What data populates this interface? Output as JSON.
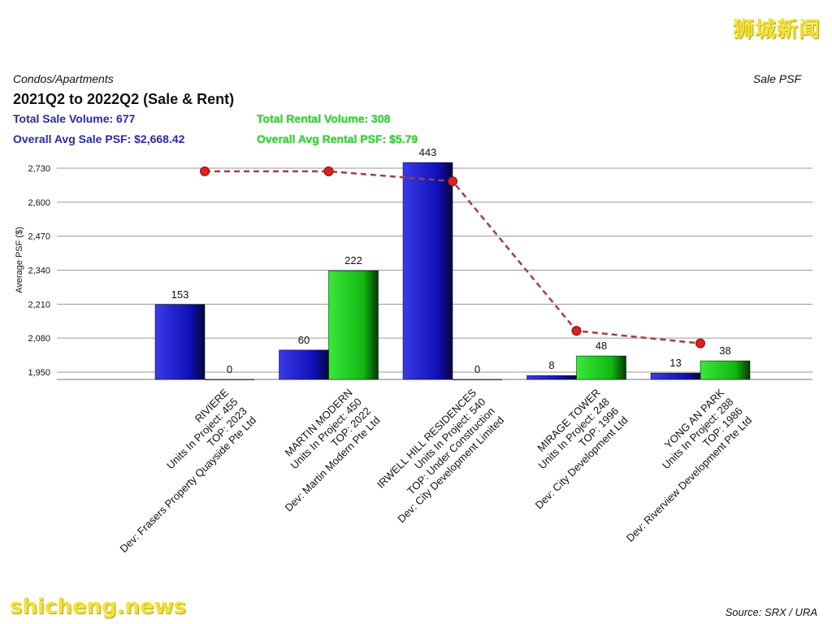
{
  "watermark_top": "狮城新闻",
  "watermark_bottom": "shicheng.news",
  "header": {
    "category": "Condos/Apartments",
    "metric": "Sale PSF",
    "title": "2021Q2 to 2022Q2 (Sale & Rent)",
    "total_sale_volume": "Total Sale Volume: 677",
    "total_rental_volume": "Total Rental Volume: 308",
    "avg_sale_psf": "Overall Avg Sale PSF: $2,668.42",
    "avg_rental_psf": "Overall Avg Rental PSF: $5.79"
  },
  "source": "Source: SRX / URA",
  "colors": {
    "sale_bar": "#1a1ad0",
    "rent_bar": "#22cc22",
    "psf_line": "#a04040",
    "psf_point": "#e02020",
    "grid": "#9a9a9a"
  },
  "chart_data": {
    "type": "bar",
    "ylabel": "Average PSF ($)",
    "ylim": [
      1920,
      2760
    ],
    "yticks": [
      "1,950",
      "2,080",
      "2,210",
      "2,340",
      "2,470",
      "2,600",
      "2,730"
    ],
    "ytick_values": [
      1950,
      2080,
      2210,
      2340,
      2470,
      2600,
      2730
    ],
    "grid": true,
    "categories": [
      [
        "RIVIERE",
        "Units In Project: 455",
        "TOP: 2023",
        "Dev: Frasers Property Quayside Pte Ltd"
      ],
      [
        "MARTIN MODERN",
        "Units In Project: 450",
        "TOP: 2022",
        "Dev: Martin Modern Pte Ltd"
      ],
      [
        "IRWELL HILL RESIDENCES",
        "Units In Project: 540",
        "TOP: Under Construction",
        "Dev: City Development Limited"
      ],
      [
        "MIRAGE TOWER",
        "Units In Project: 248",
        "TOP: 1996",
        "Dev: City Development Ltd"
      ],
      [
        "YONG AN PARK",
        "Units In Project: 288",
        "TOP: 1986",
        "Dev: Riverview Development Pte Ltd"
      ]
    ],
    "series": [
      {
        "kind": "sale_volume",
        "values": [
          153,
          60,
          443,
          8,
          13
        ]
      },
      {
        "kind": "rental_volume",
        "values": [
          0,
          222,
          0,
          48,
          38
        ]
      }
    ],
    "sale_psf_line": [
      2718,
      2718,
      2680,
      2108,
      2060
    ]
  }
}
